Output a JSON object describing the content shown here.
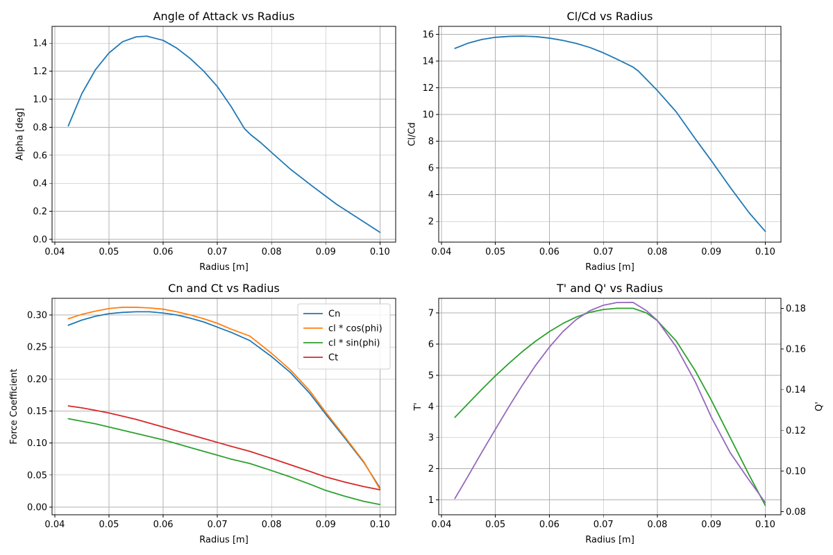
{
  "colors": {
    "blue": "#1f77b4",
    "orange": "#ff7f0e",
    "green": "#2ca02c",
    "red": "#d62728",
    "purple": "#9467bd",
    "grid": "#b0b0b0"
  },
  "chart_data": [
    {
      "type": "line",
      "title": "Angle of Attack vs Radius",
      "xlabel": "Radius [m]",
      "ylabel": "Alpha [deg]",
      "xlim": [
        0.0395,
        0.1029
      ],
      "ylim": [
        -0.02,
        1.52
      ],
      "xticks": [
        0.04,
        0.05,
        0.06,
        0.07,
        0.08,
        0.09,
        0.1
      ],
      "xtick_labels": [
        "0.04",
        "0.05",
        "0.06",
        "0.07",
        "0.08",
        "0.09",
        "0.10"
      ],
      "yticks": [
        0.0,
        0.2,
        0.4,
        0.6,
        0.8,
        1.0,
        1.2,
        1.4
      ],
      "ytick_labels": [
        "0.0",
        "0.2",
        "0.4",
        "0.6",
        "0.8",
        "1.0",
        "1.2",
        "1.4"
      ],
      "grid": true,
      "series": [
        {
          "color": "#1f77b4",
          "x": [
            0.0425,
            0.045,
            0.0475,
            0.05,
            0.0525,
            0.055,
            0.057,
            0.06,
            0.0625,
            0.065,
            0.0675,
            0.07,
            0.0725,
            0.075,
            0.0762,
            0.078,
            0.08,
            0.0835,
            0.0875,
            0.092,
            0.096,
            0.1
          ],
          "y": [
            0.81,
            1.04,
            1.21,
            1.33,
            1.41,
            1.445,
            1.45,
            1.42,
            1.365,
            1.29,
            1.2,
            1.09,
            0.95,
            0.79,
            0.745,
            0.69,
            0.62,
            0.5,
            0.38,
            0.25,
            0.15,
            0.05
          ]
        }
      ]
    },
    {
      "type": "line",
      "title": "Cl/Cd vs Radius",
      "xlabel": "Radius [m]",
      "ylabel": "Cl/Cd",
      "ylabel_color": "#1f77b4",
      "xlim": [
        0.0395,
        0.1029
      ],
      "ylim": [
        0.45,
        16.6
      ],
      "xticks": [
        0.04,
        0.05,
        0.06,
        0.07,
        0.08,
        0.09,
        0.1
      ],
      "xtick_labels": [
        "0.04",
        "0.05",
        "0.06",
        "0.07",
        "0.08",
        "0.09",
        "0.10"
      ],
      "yticks": [
        2,
        4,
        6,
        8,
        10,
        12,
        14,
        16
      ],
      "ytick_labels": [
        "2",
        "4",
        "6",
        "8",
        "10",
        "12",
        "14",
        "16"
      ],
      "ytick_color": "#1f77b4",
      "grid": true,
      "series": [
        {
          "color": "#1f77b4",
          "x": [
            0.0425,
            0.045,
            0.0475,
            0.05,
            0.0525,
            0.055,
            0.0575,
            0.06,
            0.0625,
            0.065,
            0.0675,
            0.07,
            0.0725,
            0.0755,
            0.0765,
            0.08,
            0.0835,
            0.087,
            0.09,
            0.0935,
            0.097,
            0.1
          ],
          "y": [
            14.95,
            15.35,
            15.62,
            15.78,
            15.85,
            15.87,
            15.83,
            15.72,
            15.55,
            15.32,
            15.02,
            14.62,
            14.15,
            13.55,
            13.25,
            11.8,
            10.2,
            8.2,
            6.55,
            4.55,
            2.65,
            1.25
          ]
        }
      ]
    },
    {
      "type": "line",
      "title": "Cn and Ct vs Radius",
      "xlabel": "Radius [m]",
      "ylabel": "Force Coefficient",
      "xlim": [
        0.0395,
        0.1029
      ],
      "ylim": [
        -0.012,
        0.326
      ],
      "xticks": [
        0.04,
        0.05,
        0.06,
        0.07,
        0.08,
        0.09,
        0.1
      ],
      "xtick_labels": [
        "0.04",
        "0.05",
        "0.06",
        "0.07",
        "0.08",
        "0.09",
        "0.10"
      ],
      "yticks": [
        0.0,
        0.05,
        0.1,
        0.15,
        0.2,
        0.25,
        0.3
      ],
      "ytick_labels": [
        "0.00",
        "0.05",
        "0.10",
        "0.15",
        "0.20",
        "0.25",
        "0.30"
      ],
      "grid": true,
      "legend": "top-right",
      "series": [
        {
          "name": "Cn",
          "color": "#1f77b4",
          "x": [
            0.0425,
            0.045,
            0.0475,
            0.05,
            0.0525,
            0.055,
            0.0575,
            0.06,
            0.0625,
            0.065,
            0.0675,
            0.07,
            0.0725,
            0.076,
            0.08,
            0.0835,
            0.087,
            0.09,
            0.0935,
            0.097,
            0.1
          ],
          "y": [
            0.284,
            0.292,
            0.298,
            0.302,
            0.304,
            0.305,
            0.305,
            0.303,
            0.3,
            0.295,
            0.289,
            0.281,
            0.273,
            0.26,
            0.235,
            0.21,
            0.178,
            0.145,
            0.108,
            0.07,
            0.03
          ]
        },
        {
          "name": "cl * cos(phi)",
          "color": "#ff7f0e",
          "x": [
            0.0425,
            0.045,
            0.0475,
            0.05,
            0.0525,
            0.055,
            0.0575,
            0.06,
            0.0625,
            0.065,
            0.0675,
            0.07,
            0.0725,
            0.076,
            0.08,
            0.0835,
            0.087,
            0.09,
            0.0935,
            0.097,
            0.1
          ],
          "y": [
            0.294,
            0.301,
            0.306,
            0.31,
            0.312,
            0.312,
            0.311,
            0.309,
            0.305,
            0.3,
            0.294,
            0.287,
            0.278,
            0.267,
            0.24,
            0.214,
            0.182,
            0.148,
            0.11,
            0.071,
            0.028
          ]
        },
        {
          "name": "cl * sin(phi)",
          "color": "#2ca02c",
          "x": [
            0.0425,
            0.045,
            0.0475,
            0.05,
            0.0525,
            0.055,
            0.0575,
            0.06,
            0.0625,
            0.065,
            0.0675,
            0.07,
            0.0725,
            0.076,
            0.08,
            0.0835,
            0.087,
            0.09,
            0.0935,
            0.097,
            0.1
          ],
          "y": [
            0.138,
            0.134,
            0.13,
            0.125,
            0.12,
            0.115,
            0.11,
            0.105,
            0.099,
            0.093,
            0.087,
            0.081,
            0.075,
            0.068,
            0.057,
            0.047,
            0.036,
            0.026,
            0.017,
            0.009,
            0.004
          ]
        },
        {
          "name": "Ct",
          "color": "#d62728",
          "x": [
            0.0425,
            0.045,
            0.0475,
            0.05,
            0.0525,
            0.055,
            0.0575,
            0.06,
            0.0625,
            0.065,
            0.0675,
            0.07,
            0.0725,
            0.076,
            0.08,
            0.0835,
            0.087,
            0.09,
            0.0935,
            0.097,
            0.1
          ],
          "y": [
            0.158,
            0.155,
            0.151,
            0.147,
            0.142,
            0.137,
            0.131,
            0.125,
            0.119,
            0.113,
            0.107,
            0.101,
            0.095,
            0.087,
            0.076,
            0.066,
            0.056,
            0.047,
            0.039,
            0.032,
            0.027
          ]
        }
      ]
    },
    {
      "type": "line",
      "title": "T' and Q' vs Radius",
      "xlabel": "Radius [m]",
      "ylabel": "T'",
      "ylabel_color": "#2ca02c",
      "ylabel_right": "Q'",
      "ylabel_right_color": "#9467bd",
      "xlim": [
        0.0395,
        0.1029
      ],
      "ylim": [
        0.52,
        7.47
      ],
      "ylim_right": [
        0.0785,
        0.1849
      ],
      "xticks": [
        0.04,
        0.05,
        0.06,
        0.07,
        0.08,
        0.09,
        0.1
      ],
      "xtick_labels": [
        "0.04",
        "0.05",
        "0.06",
        "0.07",
        "0.08",
        "0.09",
        "0.10"
      ],
      "yticks": [
        1,
        2,
        3,
        4,
        5,
        6,
        7
      ],
      "ytick_labels": [
        "1",
        "2",
        "3",
        "4",
        "5",
        "6",
        "7"
      ],
      "ytick_color": "#2ca02c",
      "yticks_right": [
        0.08,
        0.1,
        0.12,
        0.14,
        0.16,
        0.18
      ],
      "ytick_labels_right": [
        "0.08",
        "0.10",
        "0.12",
        "0.14",
        "0.16",
        "0.18"
      ],
      "ytick_right_color": "#9467bd",
      "grid": true,
      "series": [
        {
          "name": "T'",
          "axis": "left",
          "color": "#2ca02c",
          "x": [
            0.0425,
            0.045,
            0.0475,
            0.05,
            0.0525,
            0.055,
            0.0575,
            0.06,
            0.0625,
            0.065,
            0.0675,
            0.07,
            0.0725,
            0.0755,
            0.078,
            0.08,
            0.0835,
            0.087,
            0.09,
            0.0935,
            0.097,
            0.1
          ],
          "y": [
            3.65,
            4.1,
            4.55,
            4.98,
            5.38,
            5.76,
            6.1,
            6.4,
            6.66,
            6.87,
            7.02,
            7.11,
            7.15,
            7.15,
            7.0,
            6.75,
            6.1,
            5.15,
            4.2,
            3.0,
            1.8,
            0.82
          ]
        },
        {
          "name": "Q'",
          "axis": "right",
          "color": "#9467bd",
          "x": [
            0.0425,
            0.045,
            0.0475,
            0.05,
            0.0525,
            0.055,
            0.0575,
            0.06,
            0.0625,
            0.065,
            0.0675,
            0.07,
            0.0725,
            0.0755,
            0.078,
            0.08,
            0.0835,
            0.087,
            0.09,
            0.0935,
            0.097,
            0.1
          ],
          "y": [
            0.0865,
            0.0978,
            0.1093,
            0.1205,
            0.1316,
            0.1422,
            0.1521,
            0.1609,
            0.1685,
            0.1745,
            0.1788,
            0.1815,
            0.1828,
            0.1829,
            0.1788,
            0.174,
            0.161,
            0.144,
            0.1265,
            0.109,
            0.0955,
            0.0845
          ]
        }
      ]
    }
  ]
}
